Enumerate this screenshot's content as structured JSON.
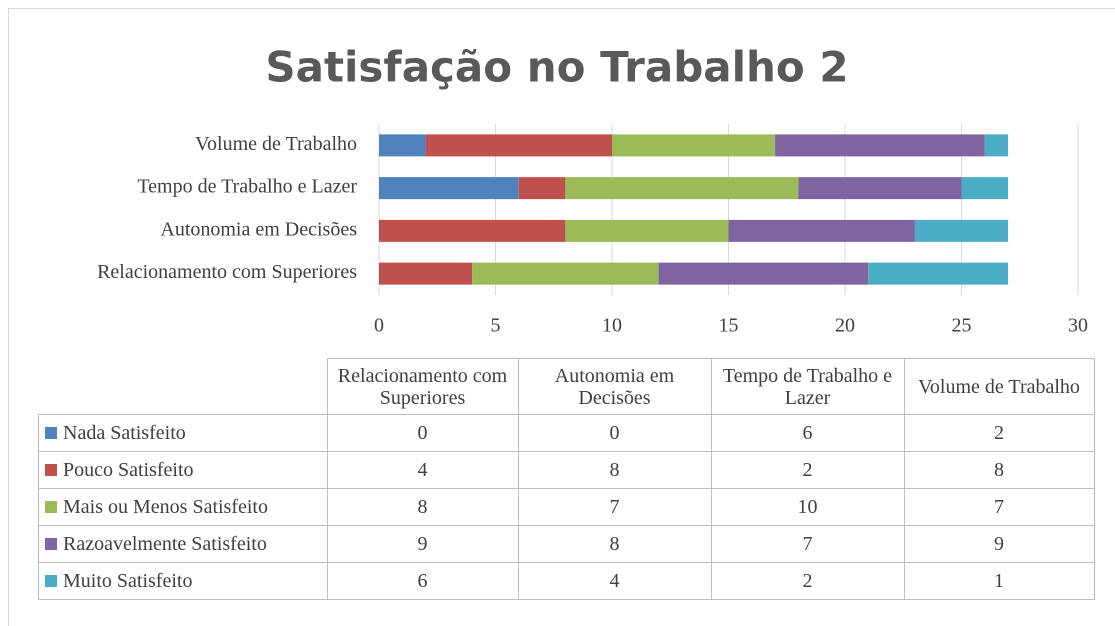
{
  "chart_data": {
    "type": "stacked_barh",
    "title": "Satisfação no Trabalho 2",
    "categories": [
      "Relacionamento com Superiores",
      "Autonomia em Decisões",
      "Tempo de Trabalho e Lazer",
      "Volume de Trabalho"
    ],
    "series": [
      {
        "name": "Nada Satisfeito",
        "color": "#4f81bd",
        "values": [
          0,
          0,
          6,
          2
        ]
      },
      {
        "name": "Pouco Satisfeito",
        "color": "#c0504d",
        "values": [
          4,
          8,
          2,
          8
        ]
      },
      {
        "name": "Mais ou Menos Satisfeito",
        "color": "#9bbb59",
        "values": [
          8,
          7,
          10,
          7
        ]
      },
      {
        "name": "Razoavelmente Satisfeito",
        "color": "#8064a2",
        "values": [
          9,
          8,
          7,
          9
        ]
      },
      {
        "name": "Muito Satisfeito",
        "color": "#4bacc6",
        "values": [
          6,
          4,
          2,
          1
        ]
      }
    ],
    "xlim": [
      0,
      30
    ],
    "xticks": [
      0,
      5,
      10,
      15,
      20,
      25,
      30
    ],
    "grid": true,
    "data_table": true
  }
}
